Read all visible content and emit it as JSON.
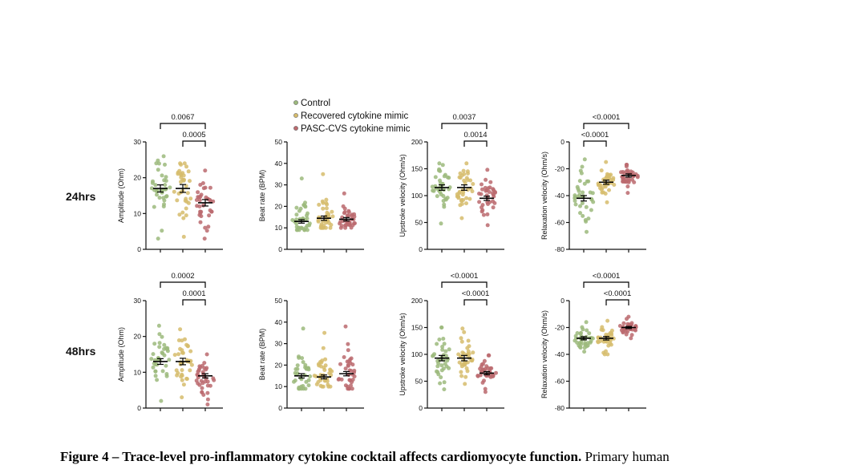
{
  "colors": {
    "control": "#9cba7c",
    "recovered": "#d6bc6c",
    "pasc": "#bb6a6e",
    "axis": "#111111"
  },
  "legend": [
    {
      "name": "Control",
      "color": "#9cba7c"
    },
    {
      "name": "Recovered cytokine mimic",
      "color": "#d6bc6c"
    },
    {
      "name": "PASC-CVS cytokine mimic",
      "color": "#bb6a6e"
    }
  ],
  "row_labels": [
    "24hrs",
    "48hrs"
  ],
  "caption": {
    "bold": "Figure 4 – Trace-level pro-inflammatory cytokine cocktail affects cardiomyocyte function.",
    "rest": "Primary human"
  },
  "chart_data": [
    {
      "type": "scatter",
      "row": "24hrs",
      "ylabel": "Amplitude (Ohm)",
      "ylim": [
        0,
        30
      ],
      "ticks": [
        0,
        10,
        20,
        30
      ],
      "groups": [
        "Control",
        "Recovered cytokine mimic",
        "PASC-CVS cytokine mimic"
      ],
      "means": [
        17,
        17,
        13
      ],
      "sem": [
        1.0,
        1.1,
        0.9
      ],
      "ranges": [
        [
          3,
          26
        ],
        [
          3.5,
          24
        ],
        [
          3,
          22
        ]
      ],
      "annotations": [
        {
          "from": 0,
          "to": 2,
          "label": "0.0067"
        },
        {
          "from": 1,
          "to": 2,
          "label": "0.0005"
        }
      ]
    },
    {
      "type": "scatter",
      "row": "24hrs",
      "ylabel": "Beat rate (BPM)",
      "ylim": [
        0,
        50
      ],
      "ticks": [
        0,
        10,
        20,
        30,
        40,
        50
      ],
      "groups": [
        "Control",
        "Recovered cytokine mimic",
        "PASC-CVS cytokine mimic"
      ],
      "means": [
        13,
        14.5,
        14
      ],
      "sem": [
        0.8,
        1.0,
        0.8
      ],
      "ranges": [
        [
          9,
          33
        ],
        [
          10,
          35
        ],
        [
          10,
          26
        ]
      ],
      "annotations": []
    },
    {
      "type": "scatter",
      "row": "24hrs",
      "ylabel": "Upstroke velocity (Ohm/s)",
      "ylim": [
        0,
        200
      ],
      "ticks": [
        0,
        50,
        100,
        150,
        200
      ],
      "groups": [
        "Control",
        "Recovered cytokine mimic",
        "PASC-CVS cytokine mimic"
      ],
      "means": [
        115,
        115,
        95
      ],
      "sem": [
        5,
        5,
        4
      ],
      "ranges": [
        [
          48,
          160
        ],
        [
          58,
          160
        ],
        [
          45,
          148
        ]
      ],
      "annotations": [
        {
          "from": 0,
          "to": 2,
          "label": "0.0037"
        },
        {
          "from": 1,
          "to": 2,
          "label": "0.0014"
        }
      ]
    },
    {
      "type": "scatter",
      "row": "24hrs",
      "ylabel": "Relaxation velocity (Ohm/s)",
      "ylim": [
        -80,
        0
      ],
      "ticks": [
        0,
        -20,
        -40,
        -60,
        -80
      ],
      "groups": [
        "Control",
        "Recovered cytokine mimic",
        "PASC-CVS cytokine mimic"
      ],
      "means": [
        -42,
        -30,
        -25
      ],
      "sem": [
        2,
        1.5,
        1.2
      ],
      "ranges": [
        [
          -67,
          -13
        ],
        [
          -45,
          -15
        ],
        [
          -38,
          -17
        ]
      ],
      "annotations": [
        {
          "from": 0,
          "to": 2,
          "label": "<0.0001"
        },
        {
          "from": 0,
          "to": 1,
          "label": "<0.0001"
        }
      ]
    },
    {
      "type": "scatter",
      "row": "48hrs",
      "ylabel": "Amplitude (Ohm)",
      "ylim": [
        0,
        30
      ],
      "ticks": [
        0,
        10,
        20,
        30
      ],
      "groups": [
        "Control",
        "Recovered cytokine mimic",
        "PASC-CVS cytokine mimic"
      ],
      "means": [
        13,
        13,
        9
      ],
      "sem": [
        0.8,
        0.9,
        0.6
      ],
      "ranges": [
        [
          2,
          23
        ],
        [
          3,
          22
        ],
        [
          1,
          15
        ]
      ],
      "annotations": [
        {
          "from": 0,
          "to": 2,
          "label": "0.0002"
        },
        {
          "from": 1,
          "to": 2,
          "label": "0.0001"
        }
      ]
    },
    {
      "type": "scatter",
      "row": "48hrs",
      "ylabel": "Beat rate (BPM)",
      "ylim": [
        0,
        50
      ],
      "ticks": [
        0,
        10,
        20,
        30,
        40,
        50
      ],
      "groups": [
        "Control",
        "Recovered cytokine mimic",
        "PASC-CVS cytokine mimic"
      ],
      "means": [
        15,
        14.5,
        16
      ],
      "sem": [
        1.0,
        0.9,
        1.0
      ],
      "ranges": [
        [
          9,
          37
        ],
        [
          10,
          35
        ],
        [
          9,
          38
        ]
      ],
      "annotations": []
    },
    {
      "type": "scatter",
      "row": "48hrs",
      "ylabel": "Upstroke velocity (Ohm/s)",
      "ylim": [
        0,
        200
      ],
      "ticks": [
        0,
        50,
        100,
        150,
        200
      ],
      "groups": [
        "Control",
        "Recovered cytokine mimic",
        "PASC-CVS cytokine mimic"
      ],
      "means": [
        93,
        93,
        65
      ],
      "sem": [
        5,
        5,
        3
      ],
      "ranges": [
        [
          35,
          150
        ],
        [
          45,
          148
        ],
        [
          30,
          98
        ]
      ],
      "annotations": [
        {
          "from": 0,
          "to": 2,
          "label": "<0.0001"
        },
        {
          "from": 1,
          "to": 2,
          "label": "<0.0001"
        }
      ]
    },
    {
      "type": "scatter",
      "row": "48hrs",
      "ylabel": "Relaxation velocity (Ohm/s)",
      "ylim": [
        -80,
        0
      ],
      "ticks": [
        0,
        -20,
        -40,
        -60,
        -80
      ],
      "groups": [
        "Control",
        "Recovered cytokine mimic",
        "PASC-CVS cytokine mimic"
      ],
      "means": [
        -28,
        -28,
        -20
      ],
      "sem": [
        1.2,
        1.3,
        0.8
      ],
      "ranges": [
        [
          -38,
          -16
        ],
        [
          -40,
          -15
        ],
        [
          -28,
          -12
        ]
      ],
      "annotations": [
        {
          "from": 0,
          "to": 2,
          "label": "<0.0001"
        },
        {
          "from": 1,
          "to": 2,
          "label": "<0.0001"
        }
      ]
    }
  ]
}
